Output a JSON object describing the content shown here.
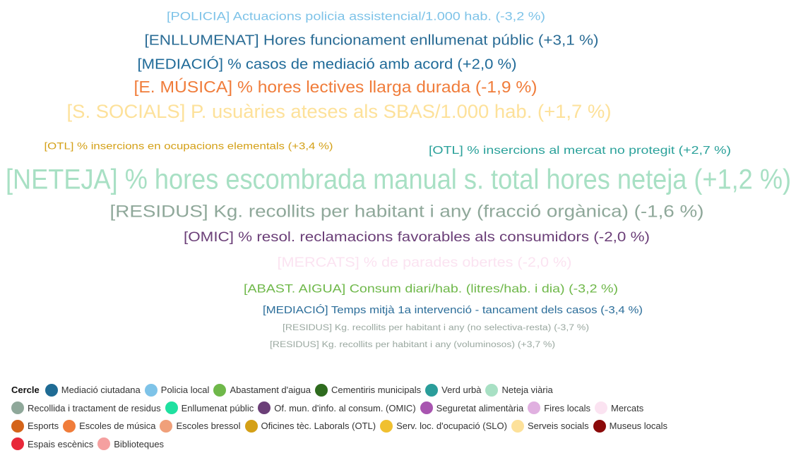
{
  "words": [
    {
      "text": "[POLICIA] Actuacions policia assistencial/1.000 hab. (-3,2 %)",
      "color": "#7ec3e8"
    },
    {
      "text": "[ENLLUMENAT] Hores funcionament enllumenat públic (+3,1 %)",
      "color": "#2a6c95"
    },
    {
      "text": "[MEDIACIÓ] % casos de mediació amb acord (+2,0 %)",
      "color": "#1f6a98"
    },
    {
      "text": "[E. MÚSICA] % hores lectives llarga durada (-1,9 %)",
      "color": "#f07c3a"
    },
    {
      "text": "[S. SOCIALS] P. usuàries ateses als SBAS/1.000 hab. (+1,7 %)",
      "color": "#fde19a"
    },
    {
      "text": "[OTL] % insercions en ocupacions elementals (+3,4 %)",
      "color": "#d4a017"
    },
    {
      "text": "[OTL] % insercions al mercat no protegit (+2,7 %)",
      "color": "#2aa19a"
    },
    {
      "text": "[NETEJA] % hores escombrada manual s. total hores neteja (+1,2 %)",
      "color": "#a8e0c4"
    },
    {
      "text": "[RESIDUS] Kg. recollits per habitant i any (fracció orgànica) (-1,6 %)",
      "color": "#8fa89a"
    },
    {
      "text": "[OMIC] % resol. reclamacions favorables als consumidors (-2,0 %)",
      "color": "#6b3f78"
    },
    {
      "text": "[MERCATS] % de parades obertes (-2,0 %)",
      "color": "#fbe3f1"
    },
    {
      "text": "[ABAST. AIGUA] Consum diari/hab. (litres/hab. i dia) (-3,2 %)",
      "color": "#6fb84a"
    },
    {
      "text": "[MEDIACIÓ] Temps mitjà 1a intervenció - tancament dels casos (-3,4 %)",
      "color": "#2c6e9a"
    },
    {
      "text": "[RESIDUS] Kg. recollits per habitant i any (no selectiva-resta) (-3,7 %)",
      "color": "#9aa8a0"
    },
    {
      "text": "[RESIDUS] Kg. recollits per habitant i any (voluminosos) (+3,7 %)",
      "color": "#9aa8a0"
    }
  ],
  "legend": {
    "title": "Cercle",
    "rows": [
      [
        {
          "label": "Mediació ciutadana",
          "color": "#1f6b94"
        },
        {
          "label": "Policia local",
          "color": "#7ec3e8"
        },
        {
          "label": "Abastament d'aigua",
          "color": "#6fb84a"
        },
        {
          "label": "Cementiris municipals",
          "color": "#2e6b1e"
        },
        {
          "label": "Verd urbà",
          "color": "#2a9d9a"
        },
        {
          "label": "Neteja viària",
          "color": "#a8e0c4"
        }
      ],
      [
        {
          "label": "Recollida i tractament de residus",
          "color": "#8fa89a"
        },
        {
          "label": "Enllumenat públic",
          "color": "#1fe0a0"
        },
        {
          "label": "Of. mun. d'info. al consum. (OMIC)",
          "color": "#6b3f78"
        },
        {
          "label": "Seguretat alimentària",
          "color": "#a855b0"
        },
        {
          "label": "Fires locals",
          "color": "#e0b0e0"
        },
        {
          "label": "Mercats",
          "color": "#fbe3f1"
        }
      ],
      [
        {
          "label": "Esports",
          "color": "#d4641a"
        },
        {
          "label": "Escoles de música",
          "color": "#f07c3a"
        },
        {
          "label": "Escoles bressol",
          "color": "#f0a07a"
        },
        {
          "label": "Oficines tèc. Laborals (OTL)",
          "color": "#d4a017"
        },
        {
          "label": "Serv. loc. d'ocupació (SLO)",
          "color": "#f0c030"
        },
        {
          "label": "Serveis socials",
          "color": "#fde19a"
        },
        {
          "label": "Museus locals",
          "color": "#8b0a0a"
        }
      ],
      [
        {
          "label": "Espais escènics",
          "color": "#e8283a"
        },
        {
          "label": "Biblioteques",
          "color": "#f5a0a0"
        }
      ]
    ]
  }
}
